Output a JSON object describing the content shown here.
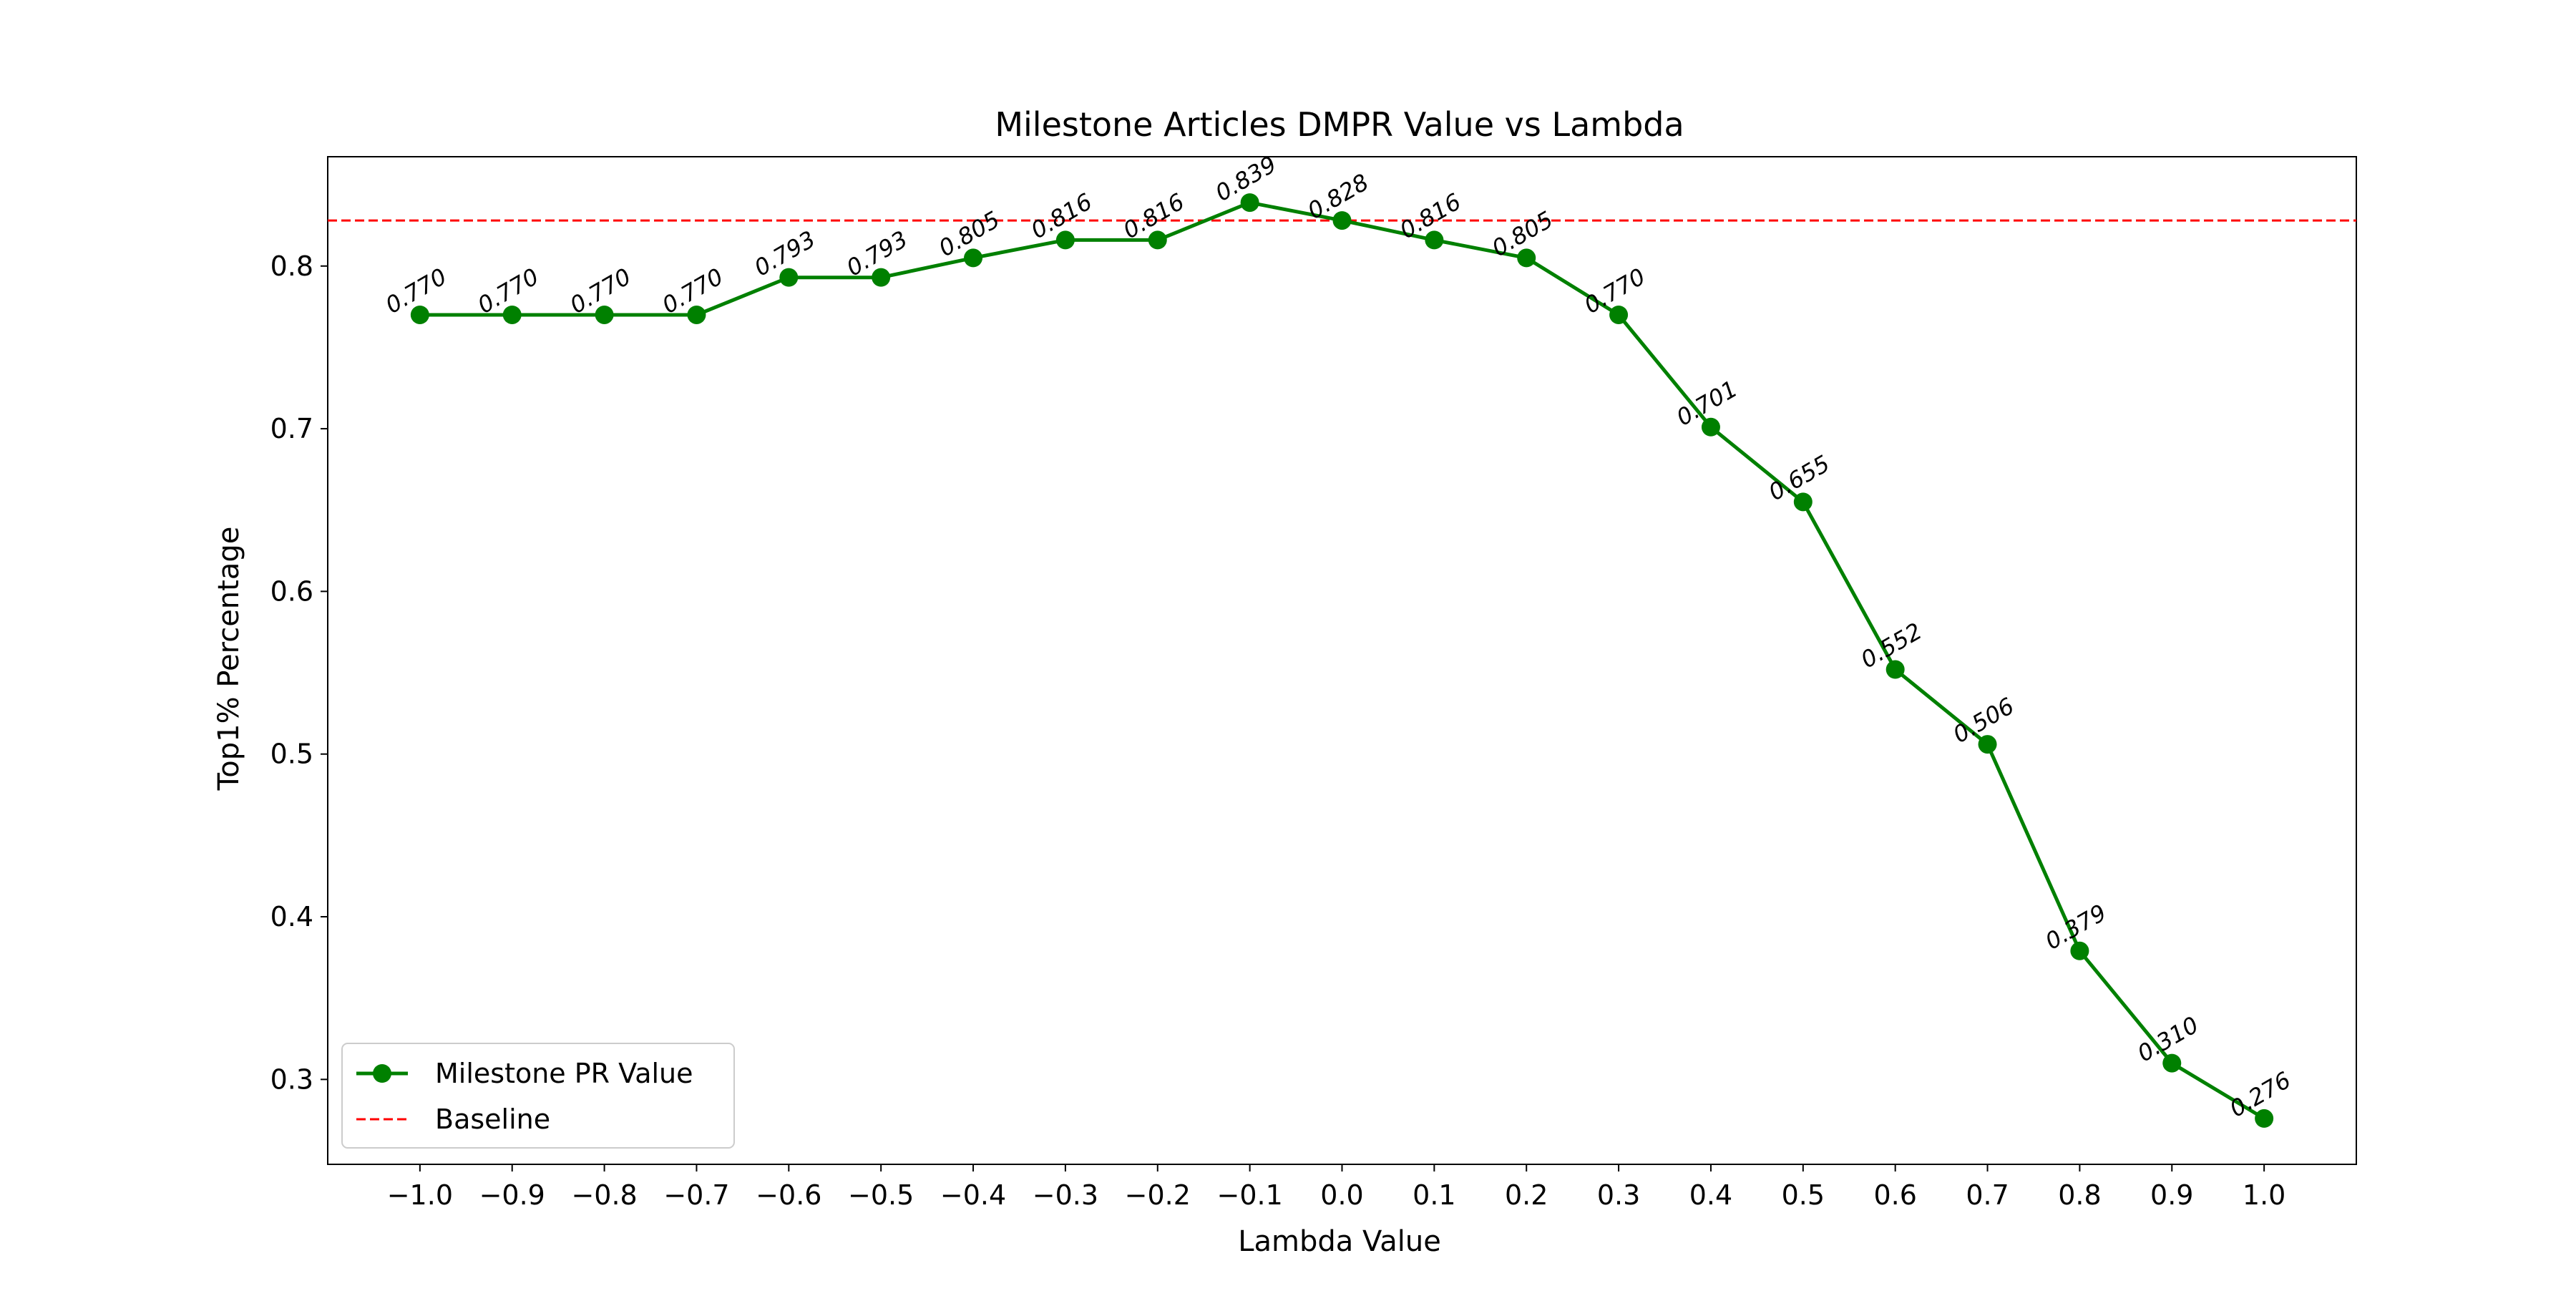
{
  "chart_data": {
    "type": "line",
    "title": "Milestone Articles DMPR Value vs Lambda",
    "xlabel": "Lambda Value",
    "ylabel": "Top1% Percentage",
    "x": [
      -1.0,
      -0.9,
      -0.8,
      -0.7,
      -0.6,
      -0.5,
      -0.4,
      -0.3,
      -0.2,
      -0.1,
      0.0,
      0.1,
      0.2,
      0.3,
      0.4,
      0.5,
      0.6,
      0.7,
      0.8,
      0.9,
      1.0
    ],
    "x_tick_labels": [
      "−1.0",
      "−0.9",
      "−0.8",
      "−0.7",
      "−0.6",
      "−0.5",
      "−0.4",
      "−0.3",
      "−0.2",
      "−0.1",
      "0.0",
      "0.1",
      "0.2",
      "0.3",
      "0.4",
      "0.5",
      "0.6",
      "0.7",
      "0.8",
      "0.9",
      "1.0"
    ],
    "y_ticks": [
      0.3,
      0.4,
      0.5,
      0.6,
      0.7,
      0.8
    ],
    "y_tick_labels": [
      "0.3",
      "0.4",
      "0.5",
      "0.6",
      "0.7",
      "0.8"
    ],
    "xlim": [
      -1.1,
      1.1
    ],
    "ylim": [
      0.2478,
      0.8672
    ],
    "series": [
      {
        "name": "Milestone PR Value",
        "color": "#008000",
        "marker": "circle",
        "values": [
          0.77,
          0.77,
          0.77,
          0.77,
          0.793,
          0.793,
          0.805,
          0.816,
          0.816,
          0.839,
          0.828,
          0.816,
          0.805,
          0.77,
          0.701,
          0.655,
          0.552,
          0.506,
          0.379,
          0.31,
          0.276
        ],
        "labels": [
          "0.770",
          "0.770",
          "0.770",
          "0.770",
          "0.793",
          "0.793",
          "0.805",
          "0.816",
          "0.816",
          "0.839",
          "0.828",
          "0.816",
          "0.805",
          "0.770",
          "0.701",
          "0.655",
          "0.552",
          "0.506",
          "0.379",
          "0.310",
          "0.276"
        ]
      }
    ],
    "baseline": {
      "name": "Baseline",
      "value": 0.828,
      "color": "#ff0000",
      "style": "dashed"
    },
    "legend_position": "lower-left",
    "grid": false
  }
}
